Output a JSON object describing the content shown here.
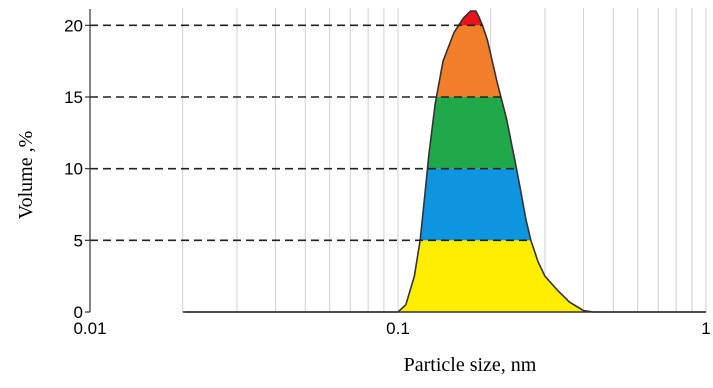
{
  "chart_data": {
    "type": "area",
    "xlabel": "Particle size, nm",
    "ylabel": "Volume ,%",
    "xscale": "log",
    "xlim": [
      0.01,
      1
    ],
    "ylim": [
      0,
      21
    ],
    "x_ticks": [
      {
        "value": 0.01,
        "label": "0.01"
      },
      {
        "value": 0.1,
        "label": "0.1"
      },
      {
        "value": 1,
        "label": "1"
      }
    ],
    "y_ticks": [
      {
        "value": 0,
        "label": "0"
      },
      {
        "value": 5,
        "label": "5"
      },
      {
        "value": 10,
        "label": "10"
      },
      {
        "value": 15,
        "label": "15"
      },
      {
        "value": 20,
        "label": "20"
      }
    ],
    "grid": "vertical log gridlines",
    "curve": {
      "x": [
        0.02,
        0.1,
        0.106,
        0.113,
        0.118,
        0.122,
        0.126,
        0.132,
        0.14,
        0.152,
        0.163,
        0.172,
        0.179,
        0.183,
        0.188,
        0.195,
        0.21,
        0.225,
        0.24,
        0.25,
        0.26,
        0.27,
        0.285,
        0.3,
        0.33,
        0.36,
        0.4,
        0.43,
        0.45,
        1.0
      ],
      "y": [
        0,
        0,
        0.5,
        2.5,
        5,
        8,
        11,
        14.5,
        17.5,
        19.5,
        20.5,
        21,
        21,
        20.6,
        20,
        19,
        16,
        13.5,
        10.5,
        8.5,
        6.5,
        5,
        3.5,
        2.5,
        1.5,
        0.7,
        0.1,
        0,
        0,
        0
      ]
    },
    "bands": [
      {
        "from": 0,
        "to": 5,
        "color": "#ffee00"
      },
      {
        "from": 5,
        "to": 10,
        "color": "#0d96df"
      },
      {
        "from": 10,
        "to": 15,
        "color": "#20a84a"
      },
      {
        "from": 15,
        "to": 20,
        "color": "#f47f2a"
      },
      {
        "from": 20,
        "to": 21,
        "color": "#e8141e"
      }
    ],
    "reference_lines": [
      5,
      10,
      15,
      20
    ]
  }
}
